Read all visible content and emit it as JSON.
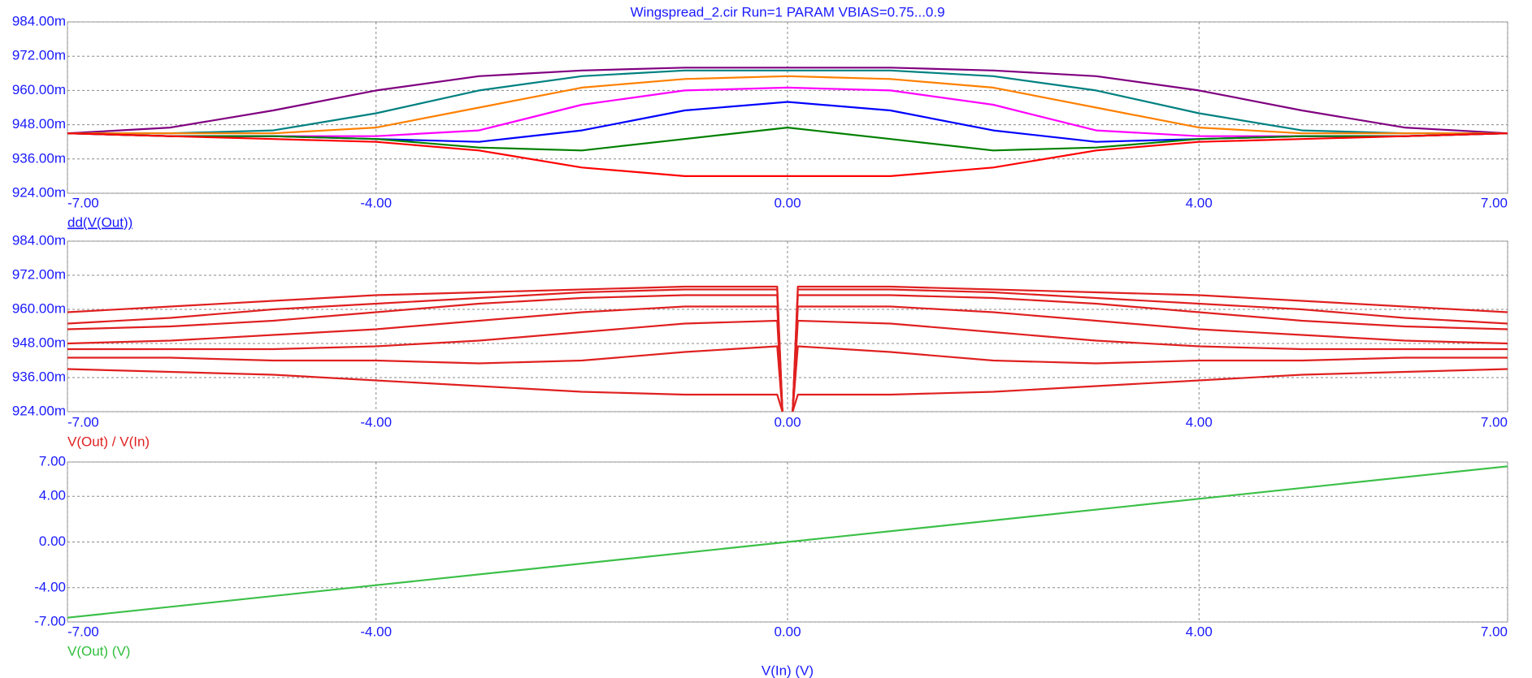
{
  "chart_data": [
    {
      "type": "line",
      "title": "Wingspread_2.cir Run=1 PARAM VBIAS=0.75...0.9",
      "ylabel": "dd(V(Out))",
      "x": [
        -7,
        -6,
        -5,
        -4,
        -3,
        -2,
        -1,
        0,
        1,
        2,
        3,
        4,
        5,
        6,
        7
      ],
      "series": [
        {
          "color": "#800080",
          "values": [
            0.945,
            0.947,
            0.953,
            0.96,
            0.965,
            0.967,
            0.968,
            0.968,
            0.968,
            0.967,
            0.965,
            0.96,
            0.953,
            0.947,
            0.945
          ]
        },
        {
          "color": "#008080",
          "values": [
            0.945,
            0.945,
            0.946,
            0.952,
            0.96,
            0.965,
            0.967,
            0.967,
            0.967,
            0.965,
            0.96,
            0.952,
            0.946,
            0.945,
            0.945
          ]
        },
        {
          "color": "#ff8000",
          "values": [
            0.945,
            0.945,
            0.945,
            0.947,
            0.954,
            0.961,
            0.964,
            0.965,
            0.964,
            0.961,
            0.954,
            0.947,
            0.945,
            0.945,
            0.945
          ]
        },
        {
          "color": "#ff00ff",
          "values": [
            0.945,
            0.944,
            0.944,
            0.944,
            0.946,
            0.955,
            0.96,
            0.961,
            0.96,
            0.955,
            0.946,
            0.944,
            0.944,
            0.944,
            0.945
          ]
        },
        {
          "color": "#0000ff",
          "values": [
            0.945,
            0.944,
            0.944,
            0.943,
            0.942,
            0.946,
            0.953,
            0.956,
            0.953,
            0.946,
            0.942,
            0.943,
            0.944,
            0.944,
            0.945
          ]
        },
        {
          "color": "#008000",
          "values": [
            0.945,
            0.944,
            0.944,
            0.943,
            0.94,
            0.939,
            0.943,
            0.947,
            0.943,
            0.939,
            0.94,
            0.943,
            0.944,
            0.944,
            0.945
          ]
        },
        {
          "color": "#ff0000",
          "values": [
            0.945,
            0.944,
            0.943,
            0.942,
            0.939,
            0.933,
            0.93,
            0.93,
            0.93,
            0.933,
            0.939,
            0.942,
            0.943,
            0.944,
            0.945
          ]
        }
      ],
      "xlim": [
        -7,
        7
      ],
      "ylim": [
        0.924,
        0.984
      ],
      "grid": true,
      "xticks": [
        {
          "value": -7,
          "label": "-7.00"
        },
        {
          "value": -4,
          "label": "-4.00"
        },
        {
          "value": 0,
          "label": "0.00"
        },
        {
          "value": 4,
          "label": "4.00"
        },
        {
          "value": 7,
          "label": "7.00"
        }
      ],
      "yticks": [
        {
          "value": 0.924,
          "label": "924.00m"
        },
        {
          "value": 0.936,
          "label": "936.00m"
        },
        {
          "value": 0.948,
          "label": "948.00m"
        },
        {
          "value": 0.96,
          "label": "960.00m"
        },
        {
          "value": 0.972,
          "label": "972.00m"
        },
        {
          "value": 0.984,
          "label": "984.00m"
        }
      ]
    },
    {
      "type": "line",
      "ylabel": "V(Out) / V(In)",
      "x": [
        -7,
        -6,
        -5,
        -4,
        -3,
        -2,
        -1,
        -0.1,
        -0.05,
        0,
        0.05,
        0.1,
        1,
        2,
        3,
        4,
        5,
        6,
        7
      ],
      "series": [
        {
          "color": "#e02020",
          "values": [
            0.959,
            0.961,
            0.963,
            0.965,
            0.966,
            0.967,
            0.968,
            0.968,
            0.924,
            null,
            0.924,
            0.968,
            0.968,
            0.967,
            0.966,
            0.965,
            0.963,
            0.961,
            0.959
          ]
        },
        {
          "color": "#e02020",
          "values": [
            0.955,
            0.957,
            0.96,
            0.962,
            0.964,
            0.966,
            0.967,
            0.967,
            0.924,
            null,
            0.924,
            0.967,
            0.967,
            0.966,
            0.964,
            0.962,
            0.96,
            0.957,
            0.955
          ]
        },
        {
          "color": "#e02020",
          "values": [
            0.953,
            0.954,
            0.956,
            0.959,
            0.962,
            0.964,
            0.965,
            0.965,
            0.924,
            null,
            0.924,
            0.965,
            0.965,
            0.964,
            0.962,
            0.959,
            0.956,
            0.954,
            0.953
          ]
        },
        {
          "color": "#e02020",
          "values": [
            0.948,
            0.949,
            0.951,
            0.953,
            0.956,
            0.959,
            0.961,
            0.961,
            0.924,
            null,
            0.924,
            0.961,
            0.961,
            0.959,
            0.956,
            0.953,
            0.951,
            0.949,
            0.948
          ]
        },
        {
          "color": "#e02020",
          "values": [
            0.946,
            0.946,
            0.946,
            0.947,
            0.949,
            0.952,
            0.955,
            0.956,
            0.924,
            null,
            0.924,
            0.956,
            0.955,
            0.952,
            0.949,
            0.947,
            0.946,
            0.946,
            0.946
          ]
        },
        {
          "color": "#e02020",
          "values": [
            0.943,
            0.943,
            0.942,
            0.942,
            0.941,
            0.942,
            0.945,
            0.947,
            0.924,
            null,
            0.924,
            0.947,
            0.945,
            0.942,
            0.941,
            0.942,
            0.942,
            0.943,
            0.943
          ]
        },
        {
          "color": "#e02020",
          "values": [
            0.939,
            0.938,
            0.937,
            0.935,
            0.933,
            0.931,
            0.93,
            0.93,
            0.924,
            null,
            0.924,
            0.93,
            0.93,
            0.931,
            0.933,
            0.935,
            0.937,
            0.938,
            0.939
          ]
        }
      ],
      "xlim": [
        -7,
        7
      ],
      "ylim": [
        0.924,
        0.984
      ],
      "grid": true,
      "xticks": [
        {
          "value": -7,
          "label": "-7.00"
        },
        {
          "value": -4,
          "label": "-4.00"
        },
        {
          "value": 0,
          "label": "0.00"
        },
        {
          "value": 4,
          "label": "4.00"
        },
        {
          "value": 7,
          "label": "7.00"
        }
      ],
      "yticks": [
        {
          "value": 0.924,
          "label": "924.00m"
        },
        {
          "value": 0.936,
          "label": "936.00m"
        },
        {
          "value": 0.948,
          "label": "948.00m"
        },
        {
          "value": 0.96,
          "label": "960.00m"
        },
        {
          "value": 0.972,
          "label": "972.00m"
        },
        {
          "value": 0.984,
          "label": "984.00m"
        }
      ]
    },
    {
      "type": "line",
      "ylabel": "V(Out) (V)",
      "xlabel": "V(In) (V)",
      "x": [
        -7,
        -4,
        0,
        4,
        7
      ],
      "series": [
        {
          "color": "#3cc048",
          "values": [
            -6.62,
            -3.78,
            0,
            3.78,
            6.62
          ]
        }
      ],
      "xlim": [
        -7,
        7
      ],
      "ylim": [
        -7,
        7
      ],
      "grid": true,
      "xticks": [
        {
          "value": -7,
          "label": "-7.00"
        },
        {
          "value": -4,
          "label": "-4.00"
        },
        {
          "value": 0,
          "label": "0.00"
        },
        {
          "value": 4,
          "label": "4.00"
        },
        {
          "value": 7,
          "label": "7.00"
        }
      ],
      "yticks": [
        {
          "value": -7,
          "label": "-7.00"
        },
        {
          "value": -4,
          "label": "-4.00"
        },
        {
          "value": 0,
          "label": "0.00"
        },
        {
          "value": 4,
          "label": "4.00"
        },
        {
          "value": 7,
          "label": "7.00"
        }
      ]
    }
  ]
}
